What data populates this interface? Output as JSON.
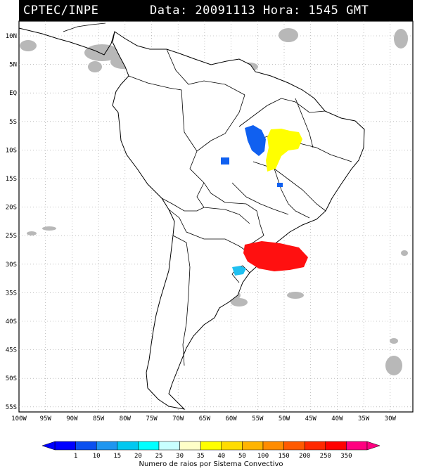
{
  "header": {
    "left": "CPTEC/INPE",
    "right": "Data: 20091113 Hora: 1545 GMT"
  },
  "axes": {
    "lat_labels": [
      "10N",
      "5N",
      "EQ",
      "5S",
      "10S",
      "15S",
      "20S",
      "25S",
      "30S",
      "35S",
      "40S",
      "45S",
      "50S",
      "55S"
    ],
    "lon_labels": [
      "100W",
      "95W",
      "90W",
      "85W",
      "80W",
      "75W",
      "70W",
      "65W",
      "60W",
      "55W",
      "50W",
      "45W",
      "40W",
      "35W",
      "30W"
    ]
  },
  "colorbar": {
    "caption": "Numero de raios por Sistema Convectivo",
    "ticks": [
      "1",
      "10",
      "15",
      "20",
      "25",
      "30",
      "35",
      "40",
      "50",
      "100",
      "150",
      "200",
      "250",
      "350"
    ],
    "colors": [
      "#0000ff",
      "#0a50f0",
      "#1e96f0",
      "#00c8f0",
      "#00ffff",
      "#c8ffff",
      "#ffffc8",
      "#ffff00",
      "#ffdc00",
      "#ffb400",
      "#ff8c00",
      "#ff5a00",
      "#ff2800",
      "#ff0000",
      "#ff0080"
    ]
  },
  "systems": [
    {
      "name": "northern-blue-cluster",
      "color": "#1060f0"
    },
    {
      "name": "northern-yellow-cluster",
      "color": "#ffff00"
    },
    {
      "name": "southern-red-cluster",
      "color": "#ff1010"
    },
    {
      "name": "southern-cyan-cluster",
      "color": "#20c0f0"
    }
  ]
}
